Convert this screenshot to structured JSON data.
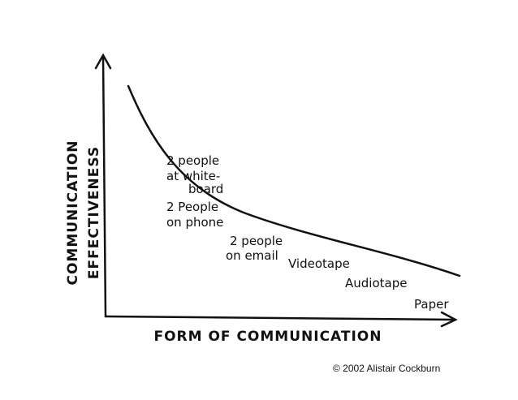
{
  "axes": {
    "y_label": [
      "COMMUNICATION",
      "EFFECTIVENESS"
    ],
    "x_label": "FORM OF COMMUNICATION"
  },
  "nodes": [
    {
      "label": [
        "2 people",
        "at white-",
        "board"
      ]
    },
    {
      "label": [
        "2 People",
        "on phone"
      ]
    },
    {
      "label": [
        "2 people",
        "on email"
      ]
    },
    {
      "label": [
        "Videotape"
      ]
    },
    {
      "label": [
        "Audiotape"
      ]
    },
    {
      "label": [
        "Paper"
      ]
    }
  ],
  "credit": "© 2002 Alistair Cockburn"
}
